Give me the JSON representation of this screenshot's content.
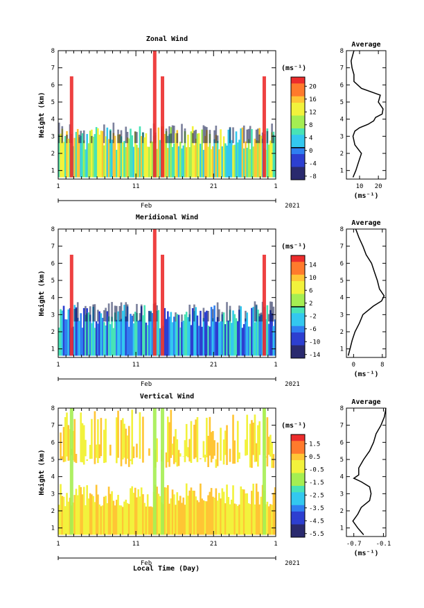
{
  "figure": {
    "xlabel": "Local Time (Day)",
    "month_label": "Feb",
    "year_label": "2021",
    "avg_title": "Average",
    "unit_label": "(ms⁻¹)"
  },
  "chart_data": [
    {
      "type": "heatmap",
      "title": "Zonal Wind",
      "ylabel": "Height (km)",
      "x_ticks": [
        "1",
        "11",
        "21",
        "1"
      ],
      "x_range_days": [
        1,
        29
      ],
      "ylim": [
        0.5,
        8
      ],
      "y_ticks": [
        "1",
        "2",
        "3",
        "4",
        "5",
        "6",
        "7",
        "8"
      ],
      "colorbar": {
        "unit": "(ms⁻¹)",
        "tick_labels": [
          "20",
          "16",
          "12",
          "8",
          "4",
          "0",
          "-4",
          "-8"
        ],
        "range": [
          -10,
          22
        ],
        "zero_line": 0
      },
      "average_profile": {
        "title": "Average",
        "xlim": [
          3,
          24
        ],
        "x_ticks": [
          "10",
          "20"
        ],
        "x_tick_values": [
          10,
          20
        ],
        "xlabel": "(ms⁻¹)",
        "height_km": [
          0.6,
          1.0,
          1.5,
          2.0,
          2.5,
          3.0,
          3.3,
          3.5,
          3.7,
          3.9,
          4.1,
          4.3,
          4.6,
          5.0,
          5.4,
          5.8,
          6.2,
          6.6,
          7.0,
          7.4,
          7.8,
          8.0
        ],
        "wind_ms": [
          6.5,
          8,
          9.5,
          11,
          7.5,
          6.5,
          7.5,
          10,
          14.5,
          17.5,
          18.5,
          22,
          22.5,
          20,
          21,
          11,
          7,
          7,
          6,
          5.5,
          6.5,
          7
        ]
      }
    },
    {
      "type": "heatmap",
      "title": "Meridional Wind",
      "ylabel": "Height (km)",
      "x_ticks": [
        "1",
        "11",
        "21",
        "1"
      ],
      "x_range_days": [
        1,
        29
      ],
      "ylim": [
        0.5,
        8
      ],
      "y_ticks": [
        "1",
        "2",
        "3",
        "4",
        "5",
        "6",
        "7",
        "8"
      ],
      "colorbar": {
        "unit": "(ms⁻¹)",
        "tick_labels": [
          "14",
          "10",
          "6",
          "2",
          "-2",
          "-6",
          "-10",
          "-14"
        ],
        "range": [
          -16,
          16
        ],
        "zero_line": 0
      },
      "average_profile": {
        "title": "Average",
        "xlim": [
          -2,
          9
        ],
        "x_ticks": [
          "0",
          "8"
        ],
        "x_tick_values": [
          0,
          8
        ],
        "xlabel": "(ms⁻¹)",
        "height_km": [
          0.6,
          1.0,
          1.5,
          2.0,
          2.5,
          3.0,
          3.5,
          3.8,
          4.1,
          4.5,
          5.0,
          5.5,
          6.0,
          6.5,
          7.0,
          7.5,
          8.0
        ],
        "wind_ms": [
          -1.5,
          -1.0,
          -0.4,
          0.4,
          1.6,
          2.6,
          5.5,
          7.8,
          8.5,
          7.2,
          6.6,
          5.8,
          5.0,
          3.5,
          2.6,
          1.5,
          0.6
        ]
      }
    },
    {
      "type": "heatmap",
      "title": "Vertical Wind",
      "ylabel": "Height (km)",
      "x_ticks": [
        "1",
        "11",
        "21",
        "1"
      ],
      "x_range_days": [
        1,
        29
      ],
      "ylim": [
        0.5,
        8
      ],
      "y_ticks": [
        "1",
        "2",
        "3",
        "4",
        "5",
        "6",
        "7",
        "8"
      ],
      "colorbar": {
        "unit": "(ms⁻¹)",
        "tick_labels": [
          "1.5",
          "0.5",
          "-0.5",
          "-1.5",
          "-2.5",
          "-3.5",
          "-4.5",
          "-5.5"
        ],
        "range": [
          -6,
          2
        ]
      },
      "average_profile": {
        "title": "Average",
        "xlim": [
          -0.85,
          -0.05
        ],
        "x_ticks": [
          "-0.7",
          "-0.1"
        ],
        "x_tick_values": [
          -0.7,
          -0.1
        ],
        "xlabel": "(ms⁻¹)",
        "height_km": [
          0.6,
          1.0,
          1.4,
          1.8,
          2.2,
          2.6,
          3.0,
          3.4,
          3.7,
          3.9,
          4.1,
          4.5,
          5.0,
          5.5,
          6.0,
          6.5,
          7.0,
          7.5,
          8.0
        ],
        "wind_ms": [
          -0.5,
          -0.62,
          -0.72,
          -0.62,
          -0.55,
          -0.38,
          -0.35,
          -0.38,
          -0.55,
          -0.7,
          -0.6,
          -0.6,
          -0.5,
          -0.38,
          -0.3,
          -0.25,
          -0.15,
          -0.08,
          -0.05
        ]
      }
    }
  ]
}
